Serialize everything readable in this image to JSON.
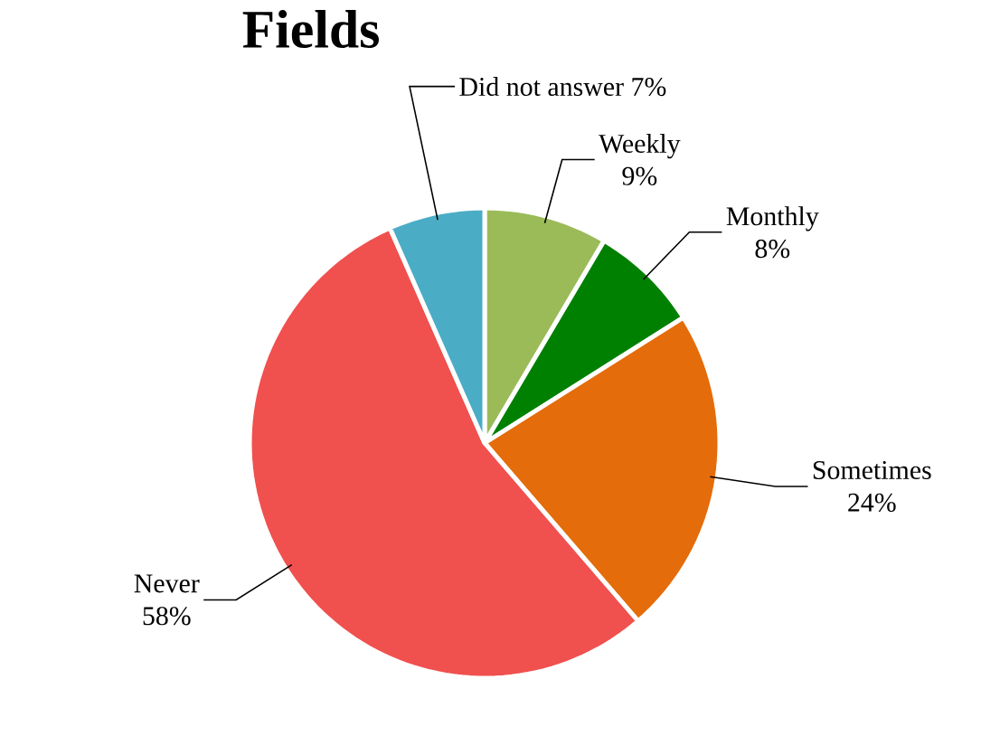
{
  "chart_data": {
    "type": "pie",
    "title": "Fields",
    "categories": [
      "Weekly",
      "Monthly",
      "Sometimes",
      "Never",
      "Did not answer"
    ],
    "values": [
      9,
      8,
      24,
      58,
      7
    ],
    "value_labels": [
      "9%",
      "8%",
      "24%",
      "58%",
      "7%"
    ],
    "colors": [
      "#9bbb59",
      "#008000",
      "#e46c0a",
      "#f0504e",
      "#4bacc6"
    ]
  }
}
